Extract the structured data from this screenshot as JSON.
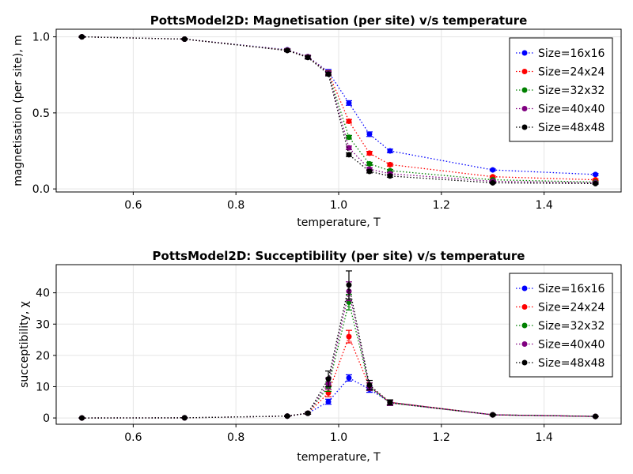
{
  "chart_data": [
    {
      "type": "line",
      "title": "PottsModel2D: Magnetisation (per site) v/s temperature",
      "xlabel": "temperature, T",
      "ylabel": "magnetisation (per site), m",
      "xlim": [
        0.45,
        1.55
      ],
      "ylim": [
        -0.02,
        1.05
      ],
      "xticks": [
        0.6,
        0.8,
        1.0,
        1.2,
        1.4
      ],
      "xtick_labels": [
        "0.6",
        "0.8",
        "1.0",
        "1.2",
        "1.4"
      ],
      "yticks": [
        0.0,
        0.5,
        1.0
      ],
      "ytick_labels": [
        "0.0",
        "0.5",
        "1.0"
      ],
      "grid": true,
      "legend_position": "top-right",
      "line_style": "dotted",
      "x": [
        0.5,
        0.7,
        0.9,
        0.94,
        0.98,
        1.02,
        1.06,
        1.1,
        1.3,
        1.5
      ],
      "series": [
        {
          "name": "Size=16x16",
          "color": "#0000ff",
          "values": [
            1.0,
            0.985,
            0.915,
            0.87,
            0.77,
            0.565,
            0.36,
            0.25,
            0.125,
            0.095
          ],
          "errors": [
            0.003,
            0.004,
            0.008,
            0.01,
            0.015,
            0.015,
            0.015,
            0.012,
            0.006,
            0.006
          ]
        },
        {
          "name": "Size=24x24",
          "color": "#ff0000",
          "values": [
            1.0,
            0.985,
            0.913,
            0.868,
            0.765,
            0.445,
            0.235,
            0.16,
            0.08,
            0.06
          ],
          "errors": [
            0.003,
            0.004,
            0.008,
            0.01,
            0.012,
            0.012,
            0.012,
            0.01,
            0.005,
            0.005
          ]
        },
        {
          "name": "Size=32x32",
          "color": "#008000",
          "values": [
            1.0,
            0.985,
            0.912,
            0.866,
            0.762,
            0.34,
            0.165,
            0.12,
            0.06,
            0.045
          ],
          "errors": [
            0.003,
            0.004,
            0.008,
            0.01,
            0.012,
            0.012,
            0.01,
            0.008,
            0.004,
            0.004
          ]
        },
        {
          "name": "Size=40x40",
          "color": "#800080",
          "values": [
            1.0,
            0.985,
            0.911,
            0.865,
            0.76,
            0.27,
            0.13,
            0.1,
            0.05,
            0.04
          ],
          "errors": [
            0.003,
            0.004,
            0.008,
            0.01,
            0.012,
            0.012,
            0.01,
            0.008,
            0.004,
            0.004
          ]
        },
        {
          "name": "Size=48x48",
          "color": "#000000",
          "values": [
            1.0,
            0.985,
            0.91,
            0.864,
            0.755,
            0.225,
            0.115,
            0.085,
            0.04,
            0.035
          ],
          "errors": [
            0.003,
            0.004,
            0.008,
            0.01,
            0.012,
            0.012,
            0.01,
            0.008,
            0.004,
            0.004
          ]
        }
      ]
    },
    {
      "type": "line",
      "title": "PottsModel2D: Succeptibility (per site) v/s temperature",
      "xlabel": "temperature, T",
      "ylabel": "succeptibility, χ",
      "xlim": [
        0.45,
        1.55
      ],
      "ylim": [
        -2,
        49
      ],
      "xticks": [
        0.6,
        0.8,
        1.0,
        1.2,
        1.4
      ],
      "xtick_labels": [
        "0.6",
        "0.8",
        "1.0",
        "1.2",
        "1.4"
      ],
      "yticks": [
        0,
        10,
        20,
        30,
        40
      ],
      "ytick_labels": [
        "0",
        "10",
        "20",
        "30",
        "40"
      ],
      "grid": true,
      "legend_position": "top-right",
      "line_style": "dotted",
      "x": [
        0.5,
        0.7,
        0.9,
        0.94,
        0.98,
        1.02,
        1.06,
        1.1,
        1.3,
        1.5
      ],
      "series": [
        {
          "name": "Size=16x16",
          "color": "#0000ff",
          "values": [
            0.0,
            0.05,
            0.6,
            1.5,
            5.2,
            12.8,
            9.2,
            5.0,
            1.0,
            0.5
          ],
          "errors": [
            0.02,
            0.05,
            0.15,
            0.3,
            0.8,
            1.0,
            1.0,
            0.8,
            0.2,
            0.1
          ]
        },
        {
          "name": "Size=24x24",
          "color": "#ff0000",
          "values": [
            0.0,
            0.05,
            0.6,
            1.5,
            8.0,
            26.0,
            10.0,
            5.0,
            1.0,
            0.5
          ],
          "errors": [
            0.02,
            0.05,
            0.15,
            0.3,
            1.2,
            2.0,
            1.2,
            0.8,
            0.2,
            0.1
          ]
        },
        {
          "name": "Size=32x32",
          "color": "#008000",
          "values": [
            0.0,
            0.05,
            0.6,
            1.5,
            10.0,
            37.0,
            10.0,
            4.8,
            1.0,
            0.5
          ],
          "errors": [
            0.02,
            0.05,
            0.15,
            0.3,
            1.5,
            2.5,
            1.2,
            0.8,
            0.2,
            0.1
          ]
        },
        {
          "name": "Size=40x40",
          "color": "#800080",
          "values": [
            0.0,
            0.05,
            0.6,
            1.5,
            11.0,
            40.5,
            10.0,
            4.8,
            1.0,
            0.5
          ],
          "errors": [
            0.02,
            0.05,
            0.15,
            0.3,
            1.8,
            3.0,
            1.2,
            0.8,
            0.2,
            0.1
          ]
        },
        {
          "name": "Size=48x48",
          "color": "#000000",
          "values": [
            0.0,
            0.05,
            0.6,
            1.5,
            12.5,
            42.5,
            10.5,
            5.0,
            1.0,
            0.5
          ],
          "errors": [
            0.02,
            0.05,
            0.15,
            0.3,
            2.5,
            4.5,
            1.5,
            0.8,
            0.2,
            0.1
          ]
        }
      ]
    }
  ]
}
